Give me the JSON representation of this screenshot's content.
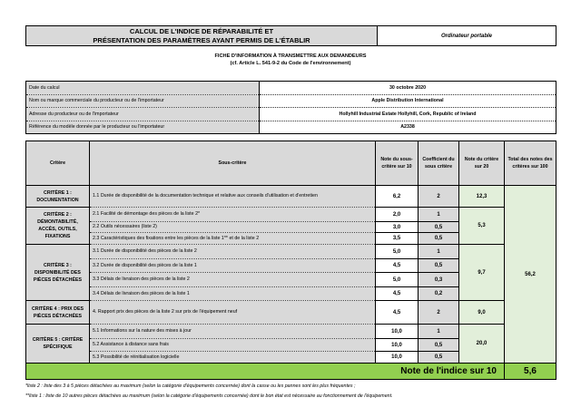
{
  "header": {
    "title_line1": "CALCUL DE L'INDICE DE RÉPARABILITÉ ET",
    "title_line2": "PRÉSENTATION DES PARAMÈTRES AYANT PERMIS DE L'ÉTABLIR",
    "product_type": "Ordinateur portable"
  },
  "subtitle": {
    "line1": "FICHE D'INFORMATION À TRANSMETTRE AUX DEMANDEURS",
    "line2": "(cf. Article L. 541-9-2 du Code de l'environnement)"
  },
  "info": [
    {
      "label": "Date du calcul",
      "value": "30 octobre 2020"
    },
    {
      "label": "Nom ou marque commerciale du producteur ou de l'importateur",
      "value": "Apple Distribution International"
    },
    {
      "label": "Adresse du producteur ou de l'importateur",
      "value": "Hollyhill Industrial Estate Hollyhill, Cork, Republic of Ireland"
    },
    {
      "label": "Référence du modèle donnée par le producteur ou l'importateur",
      "value": "A2338"
    }
  ],
  "columns": {
    "critere": "Critère",
    "sous_critere": "Sous-critère",
    "note_sous": "Note du sous-critère sur 10",
    "coef": "Coefficient du sous critère",
    "note_crit": "Note du critère sur 20",
    "total": "Total des notes des critères sur 100"
  },
  "criteria": [
    {
      "name": "CRITÈRE 1 : DOCUMENTATION",
      "score": "12,3",
      "subs": [
        {
          "label": "1.1 Durée de disponibilité de la documentation technique et relative aux conseils d'utilisation et d'entretien",
          "note": "6,2",
          "coef": "2"
        }
      ]
    },
    {
      "name": "CRITÈRE 2 : DÉMONTABILITÉ, ACCÈS, OUTILS, FIXATIONS",
      "score": "5,3",
      "subs": [
        {
          "label": "2.1 Facilité de démontage des pièces de la liste 2*",
          "note": "2,0",
          "coef": "1"
        },
        {
          "label": "2.2 Outils nécessaires (liste 2)",
          "note": "3,0",
          "coef": "0,5"
        },
        {
          "label": "2.3 Caractéristiques des fixations entre les pièces de la liste 1** et de la liste 2",
          "note": "3,5",
          "coef": "0,5"
        }
      ]
    },
    {
      "name": "CRITÈRE 3 : DISPONIBILITÉ DES PIÈCES DÉTACHÉES",
      "score": "9,7",
      "subs": [
        {
          "label": "3.1 Durée de disponibilité des pièces de la liste 2",
          "note": "5,0",
          "coef": "1"
        },
        {
          "label": "3.2 Durée de disponibilité des pièces de la liste 1",
          "note": "4,5",
          "coef": "0,5"
        },
        {
          "label": "3.3 Délais de livraison des pièces de la liste 2",
          "note": "5,0",
          "coef": "0,3"
        },
        {
          "label": "3.4 Délais de livraison des pièces de la liste 1",
          "note": "4,5",
          "coef": "0,2"
        }
      ]
    },
    {
      "name": "CRITÈRE 4 : PRIX DES PIÈCES DÉTACHÉES",
      "score": "9,0",
      "subs": [
        {
          "label": "4. Rapport prix des pièces de la liste 2 sur prix de l'équipement neuf",
          "note": "4,5",
          "coef": "2"
        }
      ]
    },
    {
      "name": "CRITÈRE 5 : CRITÈRE SPÉCIFIQUE",
      "score": "20,0",
      "subs": [
        {
          "label": "5.1 Informations sur la nature des mises à jour",
          "note": "10,0",
          "coef": "1"
        },
        {
          "label": "5.2 Assistance à distance sans frais",
          "note": "10,0",
          "coef": "0,5"
        },
        {
          "label": "5.3 Possibilité de réinitialisation logicielle",
          "note": "10,0",
          "coef": "0,5"
        }
      ]
    }
  ],
  "total_100": "56,2",
  "final": {
    "label": "Note de l'indice sur 10",
    "value": "5,6"
  },
  "footnotes": [
    "*liste 2 : liste des 3 à 5 pièces détachées au maximum (selon la catégorie d'équipements concernée) dont la casse ou les pannes sont les plus fréquentes ;",
    "**liste 1 : liste de 10 autres pièces détachées au maximum (selon la catégorie d'équipements concernée) dont le bon état est nécessaire au fonctionnement de l'équipement."
  ],
  "colors": {
    "grey": "#d9d9d9",
    "light_green": "#e2efda",
    "green": "#92d050"
  }
}
